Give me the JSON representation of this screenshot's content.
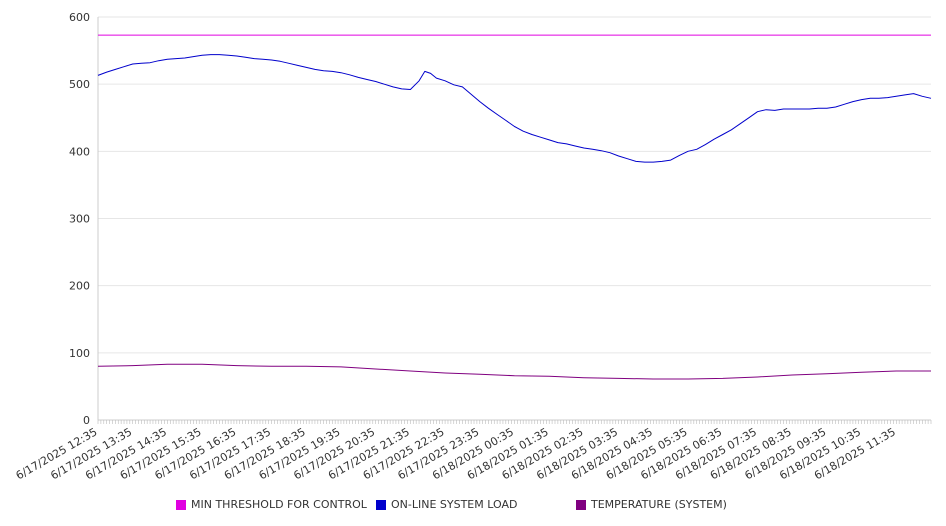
{
  "chart_data": {
    "type": "line",
    "ylim": [
      0,
      600
    ],
    "yticks": [
      0,
      100,
      200,
      300,
      400,
      500,
      600
    ],
    "grid": true,
    "legend_position": "bottom",
    "x_tick_labels": [
      "6/17/2025 12:35",
      "6/17/2025 13:35",
      "6/17/2025 14:35",
      "6/17/2025 15:35",
      "6/17/2025 16:35",
      "6/17/2025 17:35",
      "6/17/2025 18:35",
      "6/17/2025 19:35",
      "6/17/2025 20:35",
      "6/17/2025 21:35",
      "6/17/2025 22:35",
      "6/17/2025 23:35",
      "6/18/2025 00:35",
      "6/18/2025 01:35",
      "6/18/2025 02:35",
      "6/18/2025 03:35",
      "6/18/2025 04:35",
      "6/18/2025 05:35",
      "6/18/2025 06:35",
      "6/18/2025 07:35",
      "6/18/2025 08:35",
      "6/18/2025 09:35",
      "6/18/2025 10:35",
      "6/18/2025 11:35"
    ],
    "x_range": [
      "6/17/2025 12:35",
      "6/18/2025 12:35"
    ],
    "series": [
      {
        "name": "MIN THRESHOLD FOR CONTROL",
        "color": "#e000e0",
        "points": [
          [
            "6/17/2025 12:35",
            573
          ],
          [
            "6/18/2025 12:35",
            573
          ]
        ]
      },
      {
        "name": "ON-LINE SYSTEM LOAD",
        "color": "#0000cc",
        "points": [
          [
            "6/17/2025 12:35",
            513
          ],
          [
            "6/17/2025 12:50",
            518
          ],
          [
            "6/17/2025 13:05",
            522
          ],
          [
            "6/17/2025 13:20",
            526
          ],
          [
            "6/17/2025 13:35",
            530
          ],
          [
            "6/17/2025 13:50",
            531
          ],
          [
            "6/17/2025 14:05",
            532
          ],
          [
            "6/17/2025 14:20",
            535
          ],
          [
            "6/17/2025 14:35",
            537
          ],
          [
            "6/17/2025 14:50",
            538
          ],
          [
            "6/17/2025 15:05",
            539
          ],
          [
            "6/17/2025 15:20",
            541
          ],
          [
            "6/17/2025 15:35",
            543
          ],
          [
            "6/17/2025 15:50",
            544
          ],
          [
            "6/17/2025 16:05",
            544
          ],
          [
            "6/17/2025 16:20",
            543
          ],
          [
            "6/17/2025 16:35",
            542
          ],
          [
            "6/17/2025 16:50",
            540
          ],
          [
            "6/17/2025 17:05",
            538
          ],
          [
            "6/17/2025 17:20",
            537
          ],
          [
            "6/17/2025 17:35",
            536
          ],
          [
            "6/17/2025 17:50",
            534
          ],
          [
            "6/17/2025 18:05",
            531
          ],
          [
            "6/17/2025 18:20",
            528
          ],
          [
            "6/17/2025 18:35",
            525
          ],
          [
            "6/17/2025 18:50",
            522
          ],
          [
            "6/17/2025 19:05",
            520
          ],
          [
            "6/17/2025 19:20",
            519
          ],
          [
            "6/17/2025 19:35",
            517
          ],
          [
            "6/17/2025 19:50",
            514
          ],
          [
            "6/17/2025 20:05",
            510
          ],
          [
            "6/17/2025 20:20",
            507
          ],
          [
            "6/17/2025 20:35",
            504
          ],
          [
            "6/17/2025 20:50",
            500
          ],
          [
            "6/17/2025 21:05",
            496
          ],
          [
            "6/17/2025 21:20",
            493
          ],
          [
            "6/17/2025 21:35",
            492
          ],
          [
            "6/17/2025 21:50",
            505
          ],
          [
            "6/17/2025 22:00",
            519
          ],
          [
            "6/17/2025 22:10",
            516
          ],
          [
            "6/17/2025 22:20",
            509
          ],
          [
            "6/17/2025 22:35",
            505
          ],
          [
            "6/17/2025 22:50",
            499
          ],
          [
            "6/17/2025 23:05",
            496
          ],
          [
            "6/17/2025 23:20",
            485
          ],
          [
            "6/17/2025 23:35",
            474
          ],
          [
            "6/17/2025 23:50",
            464
          ],
          [
            "6/18/2025 00:05",
            455
          ],
          [
            "6/18/2025 00:20",
            446
          ],
          [
            "6/18/2025 00:35",
            437
          ],
          [
            "6/18/2025 00:50",
            430
          ],
          [
            "6/18/2025 01:05",
            425
          ],
          [
            "6/18/2025 01:20",
            421
          ],
          [
            "6/18/2025 01:35",
            417
          ],
          [
            "6/18/2025 01:50",
            413
          ],
          [
            "6/18/2025 02:05",
            411
          ],
          [
            "6/18/2025 02:20",
            408
          ],
          [
            "6/18/2025 02:35",
            405
          ],
          [
            "6/18/2025 02:50",
            403
          ],
          [
            "6/18/2025 03:05",
            401
          ],
          [
            "6/18/2025 03:20",
            398
          ],
          [
            "6/18/2025 03:35",
            393
          ],
          [
            "6/18/2025 03:50",
            389
          ],
          [
            "6/18/2025 04:05",
            385
          ],
          [
            "6/18/2025 04:20",
            384
          ],
          [
            "6/18/2025 04:35",
            384
          ],
          [
            "6/18/2025 04:50",
            385
          ],
          [
            "6/18/2025 05:05",
            387
          ],
          [
            "6/18/2025 05:20",
            394
          ],
          [
            "6/18/2025 05:35",
            400
          ],
          [
            "6/18/2025 05:50",
            403
          ],
          [
            "6/18/2025 06:05",
            410
          ],
          [
            "6/18/2025 06:20",
            418
          ],
          [
            "6/18/2025 06:35",
            425
          ],
          [
            "6/18/2025 06:50",
            432
          ],
          [
            "6/18/2025 07:05",
            441
          ],
          [
            "6/18/2025 07:20",
            450
          ],
          [
            "6/18/2025 07:35",
            459
          ],
          [
            "6/18/2025 07:50",
            462
          ],
          [
            "6/18/2025 08:05",
            461
          ],
          [
            "6/18/2025 08:20",
            463
          ],
          [
            "6/18/2025 08:35",
            463
          ],
          [
            "6/18/2025 08:50",
            463
          ],
          [
            "6/18/2025 09:05",
            463
          ],
          [
            "6/18/2025 09:20",
            464
          ],
          [
            "6/18/2025 09:35",
            464
          ],
          [
            "6/18/2025 09:50",
            466
          ],
          [
            "6/18/2025 10:05",
            470
          ],
          [
            "6/18/2025 10:20",
            474
          ],
          [
            "6/18/2025 10:35",
            477
          ],
          [
            "6/18/2025 10:50",
            479
          ],
          [
            "6/18/2025 11:05",
            479
          ],
          [
            "6/18/2025 11:20",
            480
          ],
          [
            "6/18/2025 11:35",
            482
          ],
          [
            "6/18/2025 11:50",
            484
          ],
          [
            "6/18/2025 12:05",
            486
          ],
          [
            "6/18/2025 12:20",
            482
          ],
          [
            "6/18/2025 12:35",
            479
          ]
        ]
      },
      {
        "name": "TEMPERATURE (SYSTEM)",
        "color": "#800080",
        "points": [
          [
            "6/17/2025 12:35",
            80
          ],
          [
            "6/17/2025 13:35",
            81
          ],
          [
            "6/17/2025 14:35",
            83
          ],
          [
            "6/17/2025 15:35",
            83
          ],
          [
            "6/17/2025 16:35",
            81
          ],
          [
            "6/17/2025 17:35",
            80
          ],
          [
            "6/17/2025 18:35",
            80
          ],
          [
            "6/17/2025 19:35",
            79
          ],
          [
            "6/17/2025 20:35",
            76
          ],
          [
            "6/17/2025 21:35",
            73
          ],
          [
            "6/17/2025 22:35",
            70
          ],
          [
            "6/17/2025 23:35",
            68
          ],
          [
            "6/18/2025 00:35",
            66
          ],
          [
            "6/18/2025 01:35",
            65
          ],
          [
            "6/18/2025 02:35",
            63
          ],
          [
            "6/18/2025 03:35",
            62
          ],
          [
            "6/18/2025 04:35",
            61
          ],
          [
            "6/18/2025 05:35",
            61
          ],
          [
            "6/18/2025 06:35",
            62
          ],
          [
            "6/18/2025 07:35",
            64
          ],
          [
            "6/18/2025 08:35",
            67
          ],
          [
            "6/18/2025 09:35",
            69
          ],
          [
            "6/18/2025 10:35",
            71
          ],
          [
            "6/18/2025 11:35",
            73
          ],
          [
            "6/18/2025 12:35",
            73
          ]
        ]
      }
    ]
  }
}
